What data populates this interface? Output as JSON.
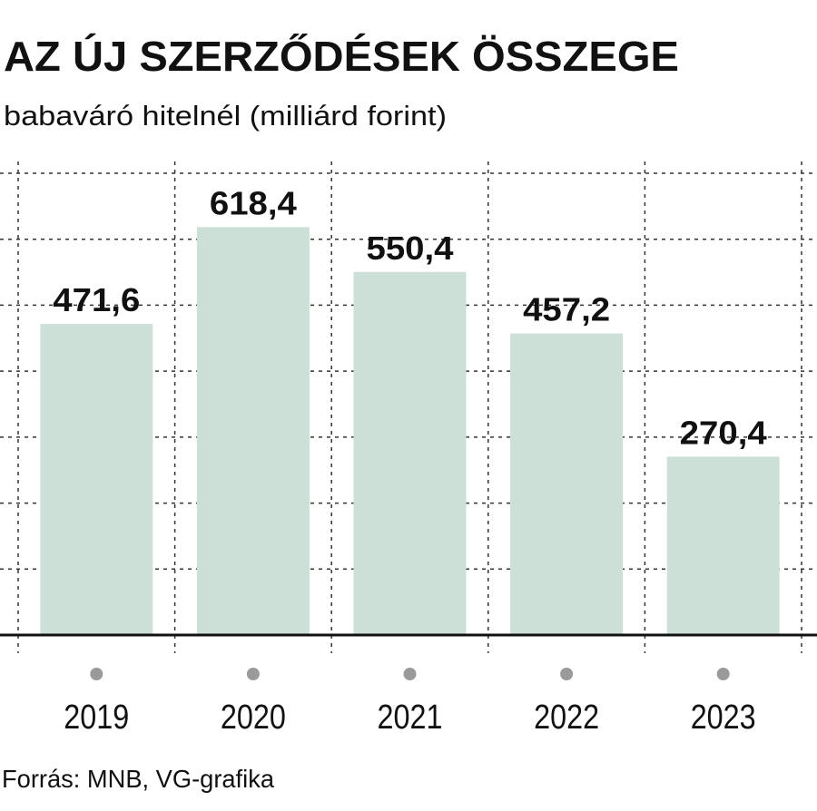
{
  "chart_data": {
    "type": "bar",
    "title": "AZ ÚJ SZERZŐDÉSEK ÖSSZEGE",
    "subtitle": "babaváró hitelnél (milliárd forint)",
    "categories": [
      "2019",
      "2020",
      "2021",
      "2022",
      "2023"
    ],
    "values": [
      471.6,
      618.4,
      550.4,
      457.2,
      270.4
    ],
    "value_labels": [
      "471,6",
      "618,4",
      "550,4",
      "457,2",
      "270,4"
    ],
    "color": "#cde0d7",
    "ylim": [
      0,
      700
    ],
    "yticks": [
      0,
      100,
      200,
      300,
      400,
      500,
      600,
      700
    ],
    "grid": true,
    "source": "Forrás: MNB, VG-grafika"
  }
}
